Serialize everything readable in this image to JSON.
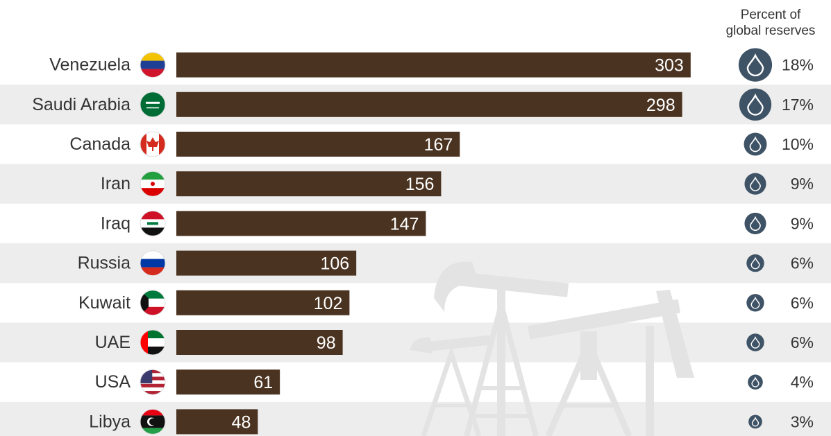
{
  "chart_data": {
    "type": "bar",
    "orientation": "horizontal",
    "categories": [
      "Venezuela",
      "Saudi Arabia",
      "Canada",
      "Iran",
      "Iraq",
      "Russia",
      "Kuwait",
      "UAE",
      "USA",
      "Libya"
    ],
    "values": [
      303,
      298,
      167,
      156,
      147,
      106,
      102,
      98,
      61,
      48
    ],
    "percent_header": [
      "Percent of",
      "global reserves"
    ],
    "percent_values": [
      "18%",
      "17%",
      "10%",
      "9%",
      "9%",
      "6%",
      "6%",
      "6%",
      "4%",
      "3%"
    ],
    "percent_numeric": [
      18,
      17,
      10,
      9,
      9,
      6,
      6,
      6,
      4,
      3
    ],
    "flags": [
      "venezuela-flag-icon",
      "saudi-arabia-flag-icon",
      "canada-flag-icon",
      "iran-flag-icon",
      "iraq-flag-icon",
      "russia-flag-icon",
      "kuwait-flag-icon",
      "uae-flag-icon",
      "usa-flag-icon",
      "libya-flag-icon"
    ],
    "legend": "none",
    "grid": false
  },
  "colors": {
    "bar": "#4a3320",
    "row_band": "#ededed",
    "drop_circle": "#3f5366",
    "text": "#333333",
    "background_art": "#e3e3e3"
  }
}
